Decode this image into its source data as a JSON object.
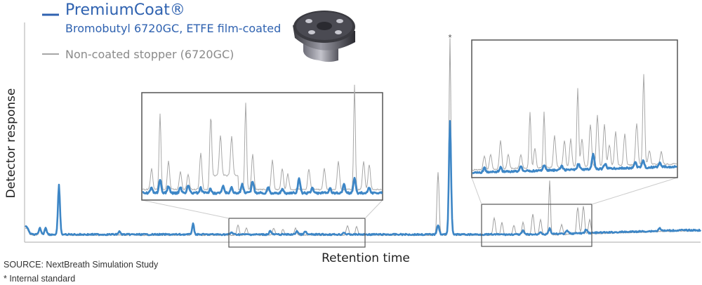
{
  "chart_data": {
    "type": "line",
    "title": "",
    "xlabel": "Retention time",
    "ylabel": "Detector response",
    "grid": false,
    "legend_placement": "top-left",
    "series": [
      {
        "name": "PremiumCoat®",
        "subtitle": "Bromobutyl 6720GC, ETFE film-coated",
        "color": "#3d86c6",
        "role": "coated"
      },
      {
        "name": "Non-coated stopper (6720GC)",
        "color": "#9a9a9a",
        "role": "uncoated"
      }
    ],
    "annotations": {
      "marker": "*",
      "source": "SOURCE: NextBreath Simulation Study",
      "footnote": "* Internal standard"
    }
  },
  "colors": {
    "coated": "#3d86c6",
    "uncoated": "#9a9a9a",
    "axis": "#bbbbbb",
    "box": "#555555"
  },
  "icons": {
    "stopper": "rubber-stopper-icon"
  }
}
